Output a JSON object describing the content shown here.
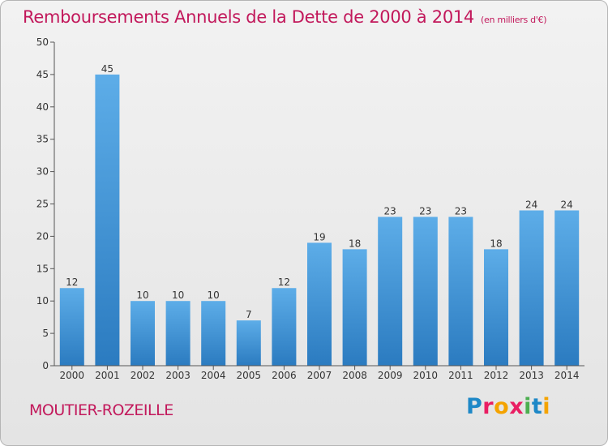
{
  "header": {
    "title": "Remboursements Annuels de la Dette de 2000 à 2014",
    "unit": "(en milliers d'€)"
  },
  "footer": {
    "city": "MOUTIER-ROZEILLE"
  },
  "logo": {
    "text": "Proxiti",
    "colors": [
      "#1e88c7",
      "#e91e63",
      "#f4a300",
      "#e91e63",
      "#4caf50",
      "#1e88c7",
      "#f4a300"
    ]
  },
  "chart_data": {
    "type": "bar",
    "title": "Remboursements Annuels de la Dette de 2000 à 2014",
    "subtitle": "(en milliers d'€)",
    "categories": [
      "2000",
      "2001",
      "2002",
      "2003",
      "2004",
      "2005",
      "2006",
      "2007",
      "2008",
      "2009",
      "2010",
      "2011",
      "2012",
      "2013",
      "2014"
    ],
    "values": [
      12,
      45,
      10,
      10,
      10,
      7,
      12,
      19,
      18,
      23,
      23,
      23,
      18,
      24,
      24
    ],
    "ylim": [
      0,
      50
    ],
    "yticks": [
      0,
      5,
      10,
      15,
      20,
      25,
      30,
      35,
      40,
      45,
      50
    ],
    "grid": false,
    "colors": {
      "bar_top": "#5dade8",
      "bar_bottom": "#2b7bc0",
      "axis": "#555555",
      "text": "#333333"
    }
  }
}
